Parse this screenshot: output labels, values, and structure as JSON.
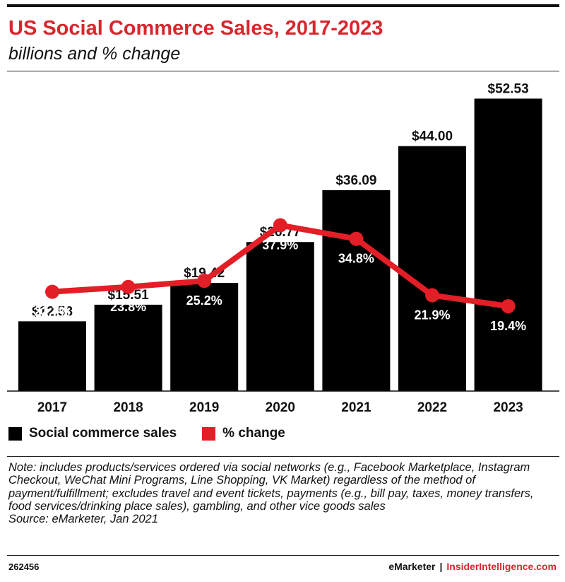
{
  "header": {
    "title": "US Social Commerce Sales, 2017-2023",
    "subtitle": "billions and % change"
  },
  "chart_data": {
    "type": "bar",
    "title": "US Social Commerce Sales, 2017-2023",
    "subtitle": "billions and % change",
    "categories": [
      "2017",
      "2018",
      "2019",
      "2020",
      "2021",
      "2022",
      "2023"
    ],
    "series": [
      {
        "name": "Social commerce sales",
        "type": "bar",
        "color": "#000000",
        "values": [
          12.53,
          15.51,
          19.42,
          26.77,
          36.09,
          44.0,
          52.53
        ],
        "labels": [
          "$12.53",
          "$15.51",
          "$19.42",
          "$26.77",
          "$36.09",
          "$44.00",
          "$52.53"
        ]
      },
      {
        "name": "% change",
        "type": "line",
        "color": "#e31e26",
        "values": [
          22.7,
          23.8,
          25.2,
          37.9,
          34.8,
          21.9,
          19.4
        ],
        "labels": [
          "22.7%",
          "23.8%",
          "25.2%",
          "37.9%",
          "34.8%",
          "21.9%",
          "19.4%"
        ]
      }
    ],
    "ylim": [
      0,
      55
    ],
    "y2lim": [
      0,
      70
    ],
    "grid": false,
    "legend_position": "bottom-left"
  },
  "legend": {
    "sales_label": "Social commerce sales",
    "change_label": "% change"
  },
  "note": {
    "text": "Note: includes products/services ordered via social networks (e.g., Facebook Marketplace, Instagram Checkout, WeChat Mini Programs, Line Shopping, VK Market) regardless of the method of payment/fulfillment; excludes travel and event tickets, payments (e.g., bill pay, taxes, money transfers, food services/drinking place sales), gambling, and other vice goods sales",
    "source": "Source: eMarketer, Jan 2021"
  },
  "footer": {
    "chart_id": "262456",
    "brand_left": "eMarketer",
    "separator": "|",
    "brand_right": "InsiderIntelligence.com"
  }
}
